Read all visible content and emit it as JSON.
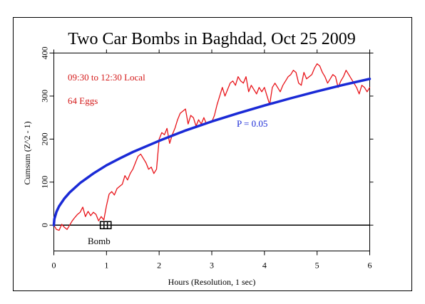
{
  "chart_data": {
    "type": "line",
    "title": "Two Car Bombs in Baghdad, Oct 25 2009",
    "xlabel": "Hours (Resolution, 1 sec)",
    "ylabel": "Cumsum (Z^2 - 1)",
    "xlim": [
      0,
      6
    ],
    "ylim": [
      -60,
      400
    ],
    "x_ticks": [
      0,
      1,
      2,
      3,
      4,
      5,
      6
    ],
    "y_ticks": [
      0,
      100,
      200,
      300,
      400
    ],
    "grid": false,
    "annotations": {
      "time_window": "09:30 to 12:30 Local",
      "eggs": "64 Eggs",
      "p_label": "P = 0.05",
      "event_label": "Bomb"
    },
    "events": [
      {
        "name": "Bomb",
        "x": 0.95
      },
      {
        "name": "Bomb",
        "x": 1.02
      }
    ],
    "series": [
      {
        "kind": "cumsum",
        "color": "#e8141a",
        "x": [
          0,
          0.05,
          0.1,
          0.15,
          0.2,
          0.25,
          0.3,
          0.35,
          0.4,
          0.45,
          0.5,
          0.55,
          0.6,
          0.65,
          0.7,
          0.75,
          0.8,
          0.85,
          0.9,
          0.95,
          1.0,
          1.05,
          1.1,
          1.15,
          1.2,
          1.25,
          1.3,
          1.35,
          1.4,
          1.45,
          1.5,
          1.55,
          1.6,
          1.65,
          1.7,
          1.75,
          1.8,
          1.85,
          1.9,
          1.95,
          2.0,
          2.05,
          2.1,
          2.15,
          2.2,
          2.25,
          2.3,
          2.35,
          2.4,
          2.45,
          2.5,
          2.55,
          2.6,
          2.65,
          2.7,
          2.75,
          2.8,
          2.85,
          2.9,
          2.95,
          3.0,
          3.05,
          3.1,
          3.15,
          3.2,
          3.25,
          3.3,
          3.35,
          3.4,
          3.45,
          3.5,
          3.55,
          3.6,
          3.65,
          3.7,
          3.75,
          3.8,
          3.85,
          3.9,
          3.95,
          4.0,
          4.05,
          4.1,
          4.15,
          4.2,
          4.25,
          4.3,
          4.35,
          4.4,
          4.45,
          4.5,
          4.55,
          4.6,
          4.65,
          4.7,
          4.75,
          4.8,
          4.85,
          4.9,
          4.95,
          5.0,
          5.05,
          5.1,
          5.15,
          5.2,
          5.25,
          5.3,
          5.35,
          5.4,
          5.45,
          5.5,
          5.55,
          5.6,
          5.65,
          5.7,
          5.75,
          5.8,
          5.85,
          5.9,
          5.95,
          6.0
        ],
        "values": [
          0,
          -10,
          -12,
          2,
          -5,
          -10,
          0,
          10,
          18,
          25,
          30,
          42,
          20,
          32,
          22,
          30,
          25,
          10,
          20,
          12,
          45,
          72,
          78,
          70,
          85,
          90,
          95,
          115,
          105,
          120,
          130,
          145,
          160,
          165,
          155,
          145,
          130,
          135,
          120,
          130,
          200,
          215,
          210,
          225,
          190,
          210,
          225,
          245,
          260,
          265,
          270,
          235,
          255,
          250,
          230,
          245,
          235,
          250,
          235,
          240,
          240,
          255,
          280,
          300,
          320,
          300,
          315,
          330,
          335,
          325,
          345,
          335,
          330,
          345,
          310,
          325,
          315,
          305,
          320,
          310,
          320,
          300,
          280,
          320,
          330,
          320,
          310,
          325,
          335,
          345,
          350,
          360,
          355,
          330,
          325,
          355,
          340,
          345,
          350,
          365,
          375,
          370,
          355,
          345,
          330,
          340,
          350,
          345,
          320,
          335,
          345,
          360,
          350,
          340,
          330,
          320,
          305,
          325,
          320,
          310,
          320
        ]
      },
      {
        "kind": "p_envelope",
        "color": "#1a2ad6",
        "x": [
          0,
          0.01,
          0.05,
          0.1,
          0.2,
          0.3,
          0.5,
          0.75,
          1.0,
          1.25,
          1.5,
          2.0,
          2.5,
          3.0,
          3.5,
          4.0,
          4.5,
          5.0,
          5.5,
          6.0
        ],
        "values": [
          0,
          14,
          31,
          44,
          62,
          76,
          98,
          120,
          139,
          155,
          170,
          196,
          220,
          241,
          260,
          278,
          295,
          311,
          326,
          340
        ]
      }
    ]
  },
  "colors": {
    "cumsum": "#e8141a",
    "envelope": "#1a2ad6",
    "annotation_red": "#d41a1a",
    "annotation_blue": "#1a2ad6",
    "axis": "#000000"
  }
}
